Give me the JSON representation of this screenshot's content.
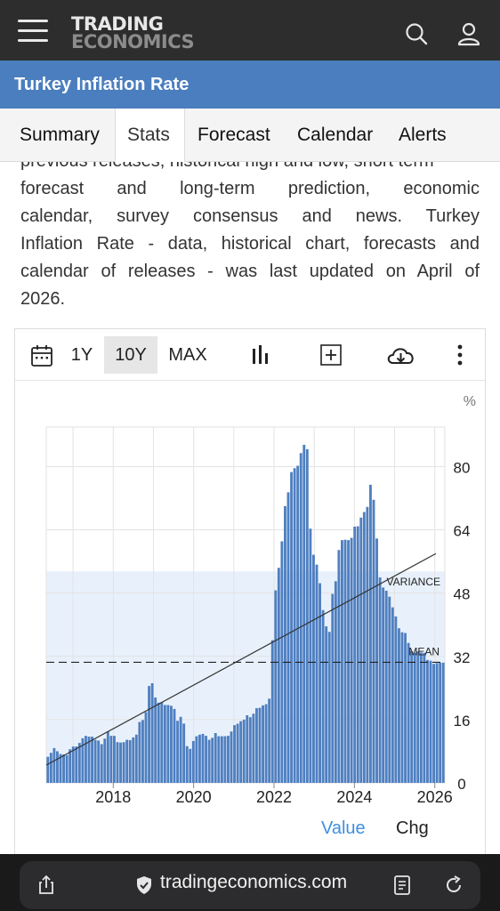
{
  "header": {
    "logo_line1": "TRADING",
    "logo_line2": "ECONOMICS"
  },
  "page": {
    "title": "Turkey Inflation Rate"
  },
  "tabs": [
    {
      "label": "Summary",
      "active": false
    },
    {
      "label": "Stats",
      "active": true
    },
    {
      "label": "Forecast",
      "active": false
    },
    {
      "label": "Calendar",
      "active": false
    },
    {
      "label": "Alerts",
      "active": false
    }
  ],
  "intro": {
    "lines": [
      "previous releases, historical high and low, short term",
      "forecast and long-term prediction, economic",
      "calendar, survey consensus and news. Turkey",
      "Inflation Rate - data, historical chart, forecasts and",
      "calendar of releases - was last updated on April of",
      "2026."
    ]
  },
  "toolbar": {
    "ranges": [
      {
        "label": "1Y",
        "selected": false
      },
      {
        "label": "10Y",
        "selected": true
      },
      {
        "label": "MAX",
        "selected": false
      }
    ],
    "icons": [
      "calendar-icon",
      "bar-chart-icon",
      "add-icon",
      "download-icon",
      "more-icon"
    ]
  },
  "chart_data": {
    "type": "bar",
    "unit_label": "%",
    "x_ticks": [
      "2018",
      "2020",
      "2022",
      "2024",
      "2026"
    ],
    "y_ticks": [
      0,
      16,
      32,
      48,
      64,
      80
    ],
    "ylim": [
      0,
      90
    ],
    "x_range": [
      "2016-05",
      "2026-03"
    ],
    "annotations": [
      "VARIANCE",
      "MEAN"
    ],
    "mean": 30.5,
    "variance_band": [
      0,
      53.5
    ],
    "trend_line": {
      "start": 4.5,
      "end": 58
    },
    "grid": true,
    "series": [
      {
        "values": [
          6.6,
          7.6,
          8.8,
          8.0,
          7.3,
          7.2,
          7.0,
          8.5,
          9.2,
          9.2,
          10.1,
          11.3,
          11.9,
          11.7,
          11.7,
          10.9,
          10.7,
          9.8,
          11.2,
          12.98,
          11.9,
          11.9,
          10.3,
          10.2,
          10.3,
          10.9,
          10.8,
          11.5,
          12.2,
          15.4,
          15.9,
          17.9,
          24.5,
          25.2,
          21.6,
          20.3,
          20.4,
          19.7,
          19.7,
          19.5,
          18.7,
          15.7,
          16.7,
          15.0,
          9.3,
          8.6,
          10.6,
          11.8,
          12.2,
          12.4,
          11.9,
          10.9,
          11.4,
          12.6,
          11.8,
          11.8,
          11.8,
          11.9,
          13.0,
          14.6,
          14.97,
          15.6,
          16.0,
          17.1,
          16.6,
          17.5,
          18.9,
          19.0,
          19.6,
          19.9,
          21.3,
          36.1,
          48.7,
          54.4,
          61.1,
          70.0,
          73.5,
          78.6,
          79.6,
          80.2,
          83.4,
          85.5,
          84.4,
          64.3,
          57.7,
          55.2,
          50.5,
          43.7,
          39.6,
          38.2,
          47.8,
          51.0,
          58.9,
          61.4,
          61.5,
          61.4,
          61.98,
          64.8,
          64.9,
          67.1,
          68.5,
          69.8,
          75.4,
          71.6,
          61.8,
          51.97,
          49.4,
          48.6,
          47.1,
          44.4,
          42.1,
          39.1,
          38.1,
          37.9,
          35.4,
          33.3,
          32.9,
          33.3,
          33.0,
          32.9,
          31.1,
          30.9,
          30.1,
          30.3,
          30.4,
          30.4
        ]
      }
    ],
    "legend": {
      "value_label": "Value",
      "chg_label": "Chg"
    }
  },
  "browser": {
    "url": "tradingeconomics.com"
  },
  "colors": {
    "topbar": "#2d2d2d",
    "titlebar": "#4a7ebe",
    "bar": "#4f7fc0",
    "band": "#e8f1fb",
    "link": "#3f8fe0"
  }
}
